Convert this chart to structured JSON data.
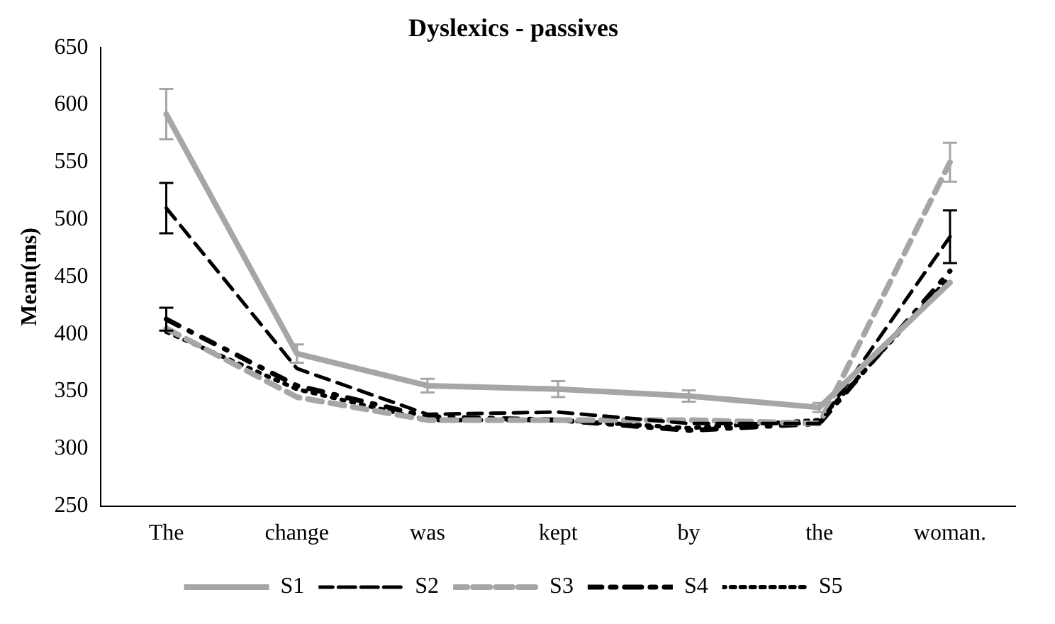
{
  "chart_data": {
    "type": "line",
    "title": "Dyslexics - passives",
    "ylabel": "Mean(ms)",
    "categories": [
      "The",
      "change",
      "was",
      "kept",
      "by",
      "the",
      "woman."
    ],
    "series": [
      {
        "name": "S1",
        "color": "#a6a6a6",
        "line_style": "solid",
        "values": [
          592,
          383,
          355,
          352,
          346,
          336,
          445
        ],
        "errors": [
          22,
          8,
          6,
          7,
          5,
          4,
          null
        ]
      },
      {
        "name": "S2",
        "color": "#000000",
        "line_style": "dashed",
        "values": [
          510,
          370,
          330,
          332,
          322,
          322,
          485
        ],
        "errors": [
          22,
          null,
          null,
          null,
          null,
          null,
          23
        ]
      },
      {
        "name": "S3",
        "color": "#a6a6a6",
        "line_style": "dashed",
        "values": [
          405,
          345,
          325,
          325,
          325,
          322,
          550
        ],
        "errors": [
          null,
          null,
          null,
          null,
          null,
          null,
          17
        ]
      },
      {
        "name": "S4",
        "color": "#000000",
        "line_style": "dotted",
        "values": [
          413,
          355,
          328,
          325,
          316,
          322,
          455
        ],
        "errors": [
          10,
          null,
          null,
          null,
          null,
          null,
          null
        ]
      },
      {
        "name": "S5",
        "color": "#000000",
        "line_style": "dotted",
        "values": [
          402,
          352,
          325,
          325,
          318,
          325,
          450
        ]
      }
    ],
    "ylim": [
      250,
      650
    ],
    "yticks": [
      250,
      300,
      350,
      400,
      450,
      500,
      550,
      600,
      650
    ],
    "grid": false,
    "legend": "bottom"
  }
}
